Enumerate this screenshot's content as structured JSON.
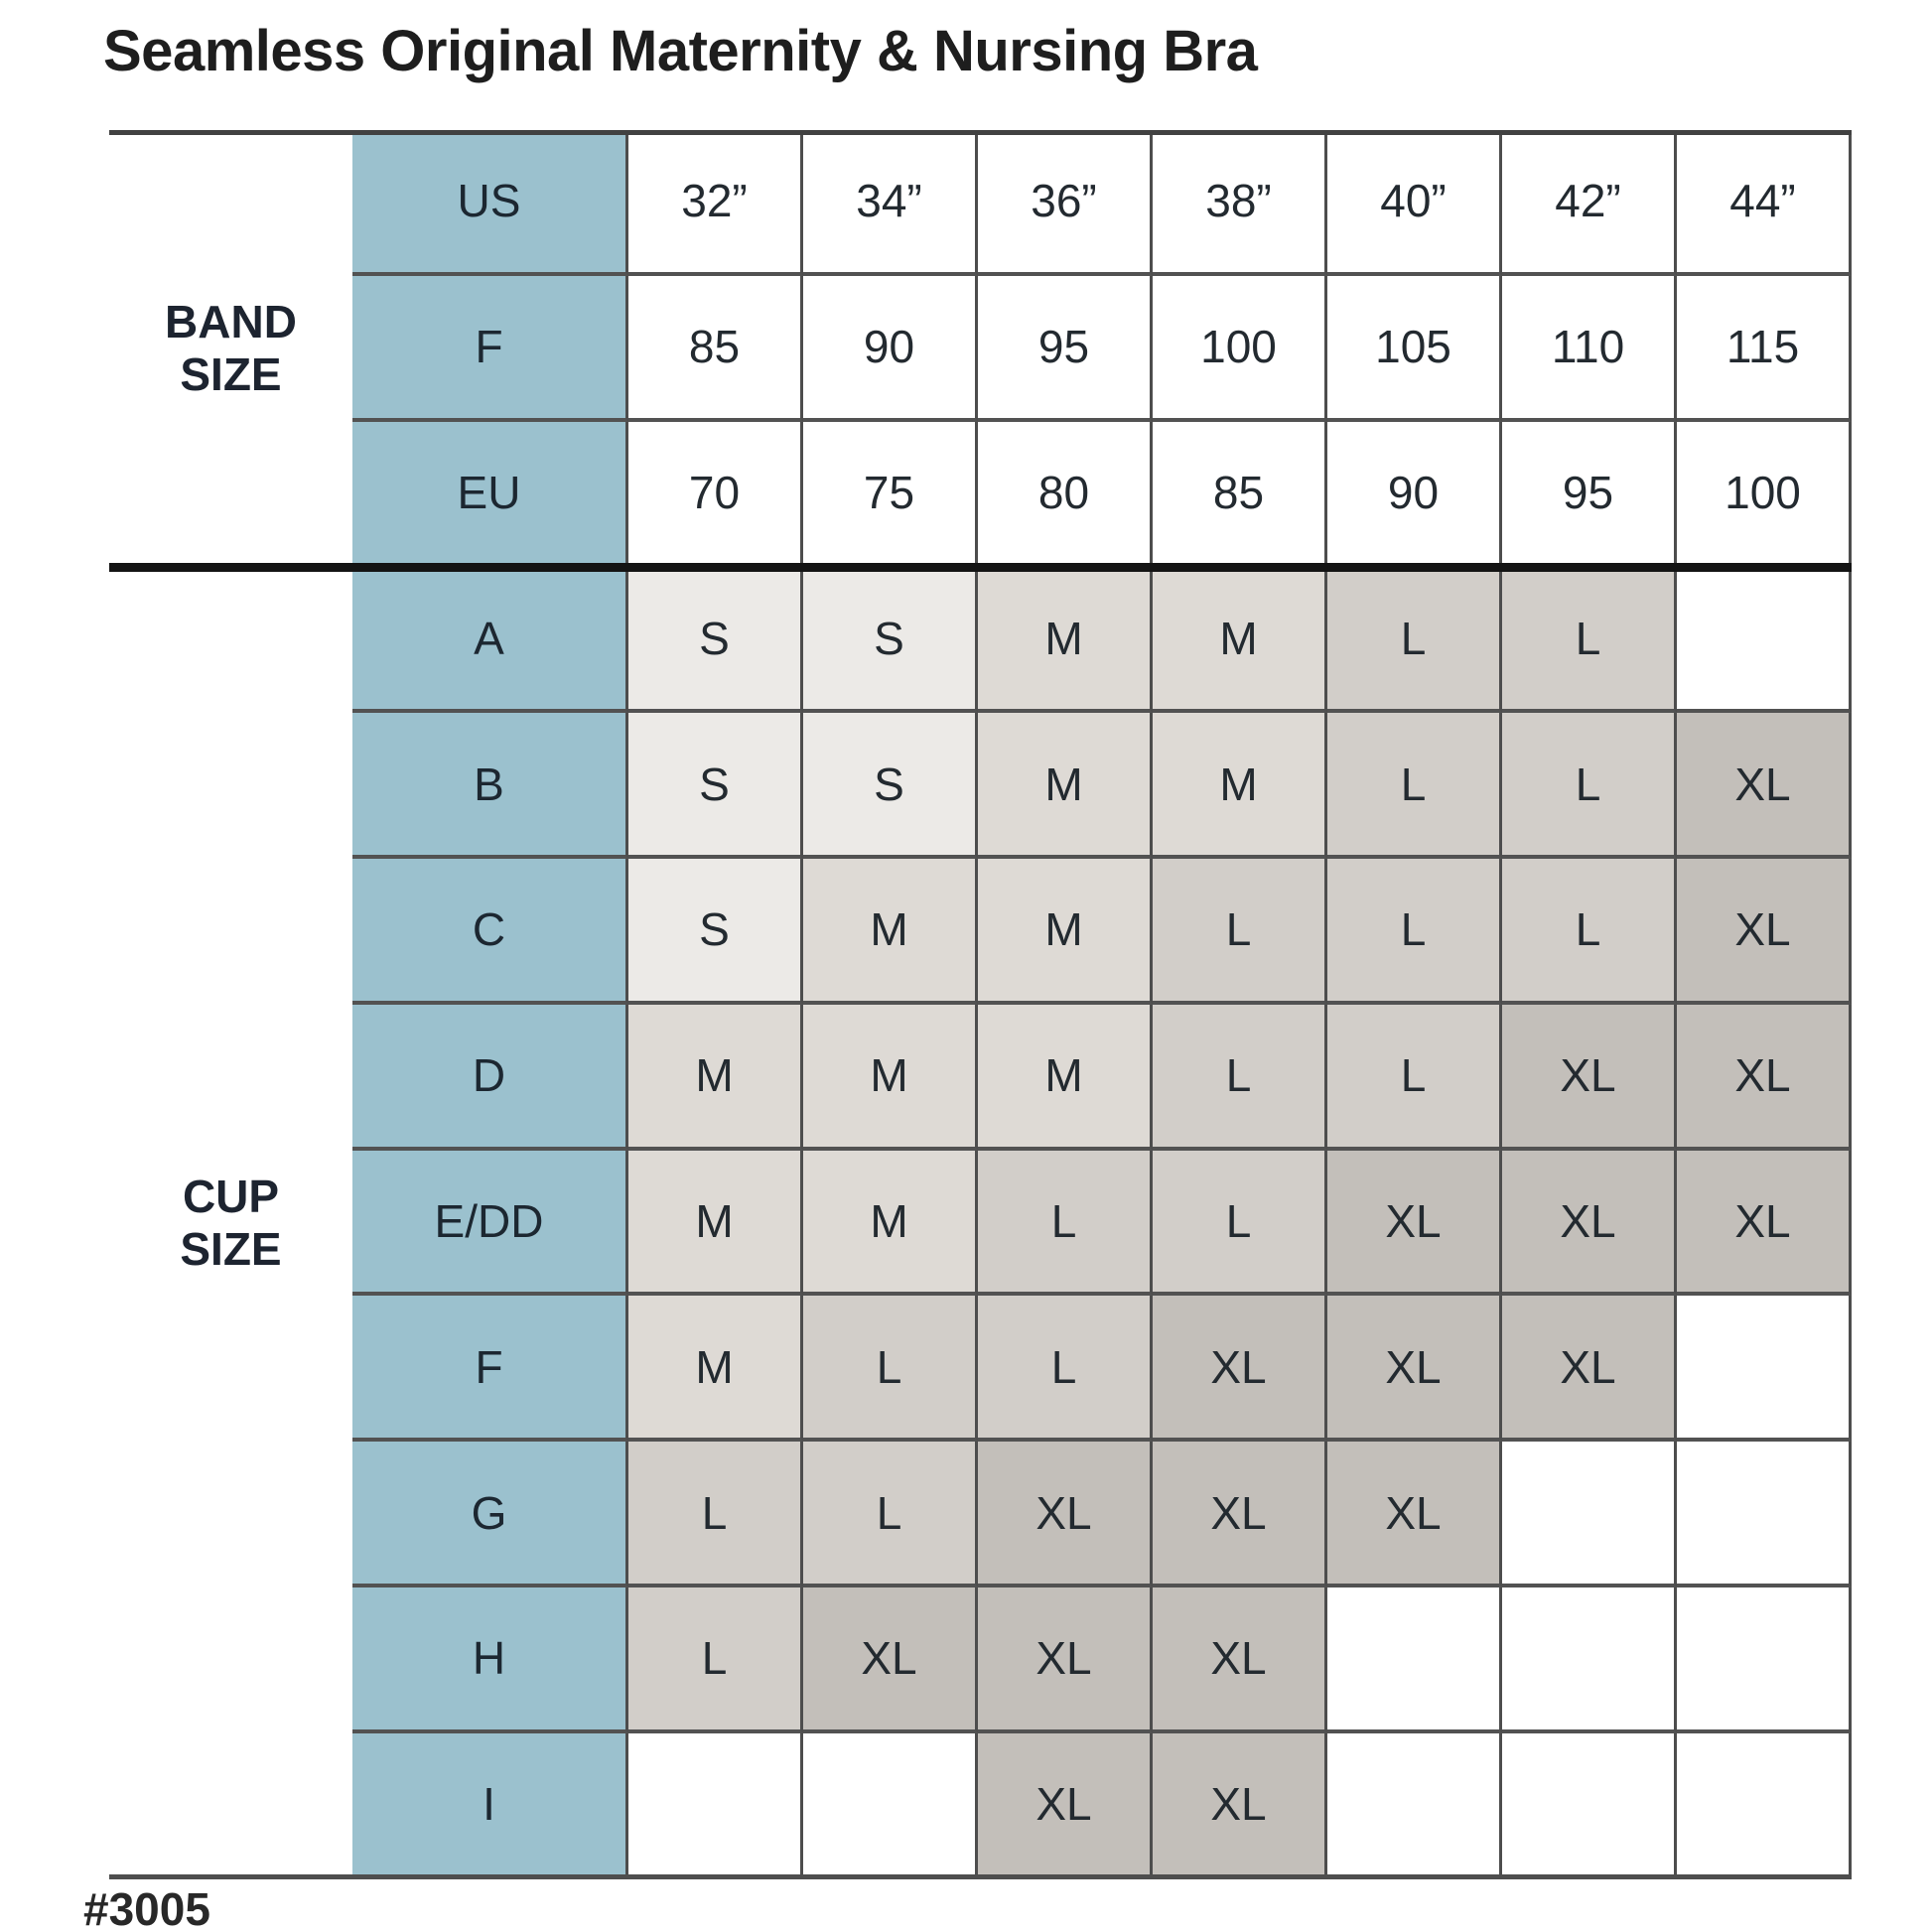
{
  "chart_data": {
    "type": "table",
    "title": "Seamless Original Maternity & Nursing Bra",
    "product_code": "#3005",
    "column_group_label": "BAND SIZE",
    "row_group_label": "CUP SIZE",
    "band_rows": [
      {
        "label": "US",
        "values": [
          "32”",
          "34”",
          "36”",
          "38”",
          "40”",
          "42”",
          "44”"
        ]
      },
      {
        "label": "F",
        "values": [
          "85",
          "90",
          "95",
          "100",
          "105",
          "110",
          "115"
        ]
      },
      {
        "label": "EU",
        "values": [
          "70",
          "75",
          "80",
          "85",
          "90",
          "95",
          "100"
        ]
      }
    ],
    "cup_rows": [
      {
        "label": "A",
        "values": [
          "S",
          "S",
          "M",
          "M",
          "L",
          "L",
          ""
        ]
      },
      {
        "label": "B",
        "values": [
          "S",
          "S",
          "M",
          "M",
          "L",
          "L",
          "XL"
        ]
      },
      {
        "label": "C",
        "values": [
          "S",
          "M",
          "M",
          "L",
          "L",
          "L",
          "XL"
        ]
      },
      {
        "label": "D",
        "values": [
          "M",
          "M",
          "M",
          "L",
          "L",
          "XL",
          "XL"
        ]
      },
      {
        "label": "E/DD",
        "values": [
          "M",
          "M",
          "L",
          "L",
          "XL",
          "XL",
          "XL"
        ]
      },
      {
        "label": "F",
        "values": [
          "M",
          "L",
          "L",
          "XL",
          "XL",
          "XL",
          ""
        ]
      },
      {
        "label": "G",
        "values": [
          "L",
          "L",
          "XL",
          "XL",
          "XL",
          "",
          ""
        ]
      },
      {
        "label": "H",
        "values": [
          "L",
          "XL",
          "XL",
          "XL",
          "",
          "",
          ""
        ]
      },
      {
        "label": "I",
        "values": [
          "",
          "",
          "XL",
          "XL",
          "",
          "",
          ""
        ]
      }
    ]
  },
  "colors": {
    "header_column_blue": "#9bc1ce",
    "size_S": "#eceae7",
    "size_M": "#dedad5",
    "size_L": "#d2cec9",
    "size_XL": "#c3bfba",
    "empty_cell": "#ffffff"
  }
}
